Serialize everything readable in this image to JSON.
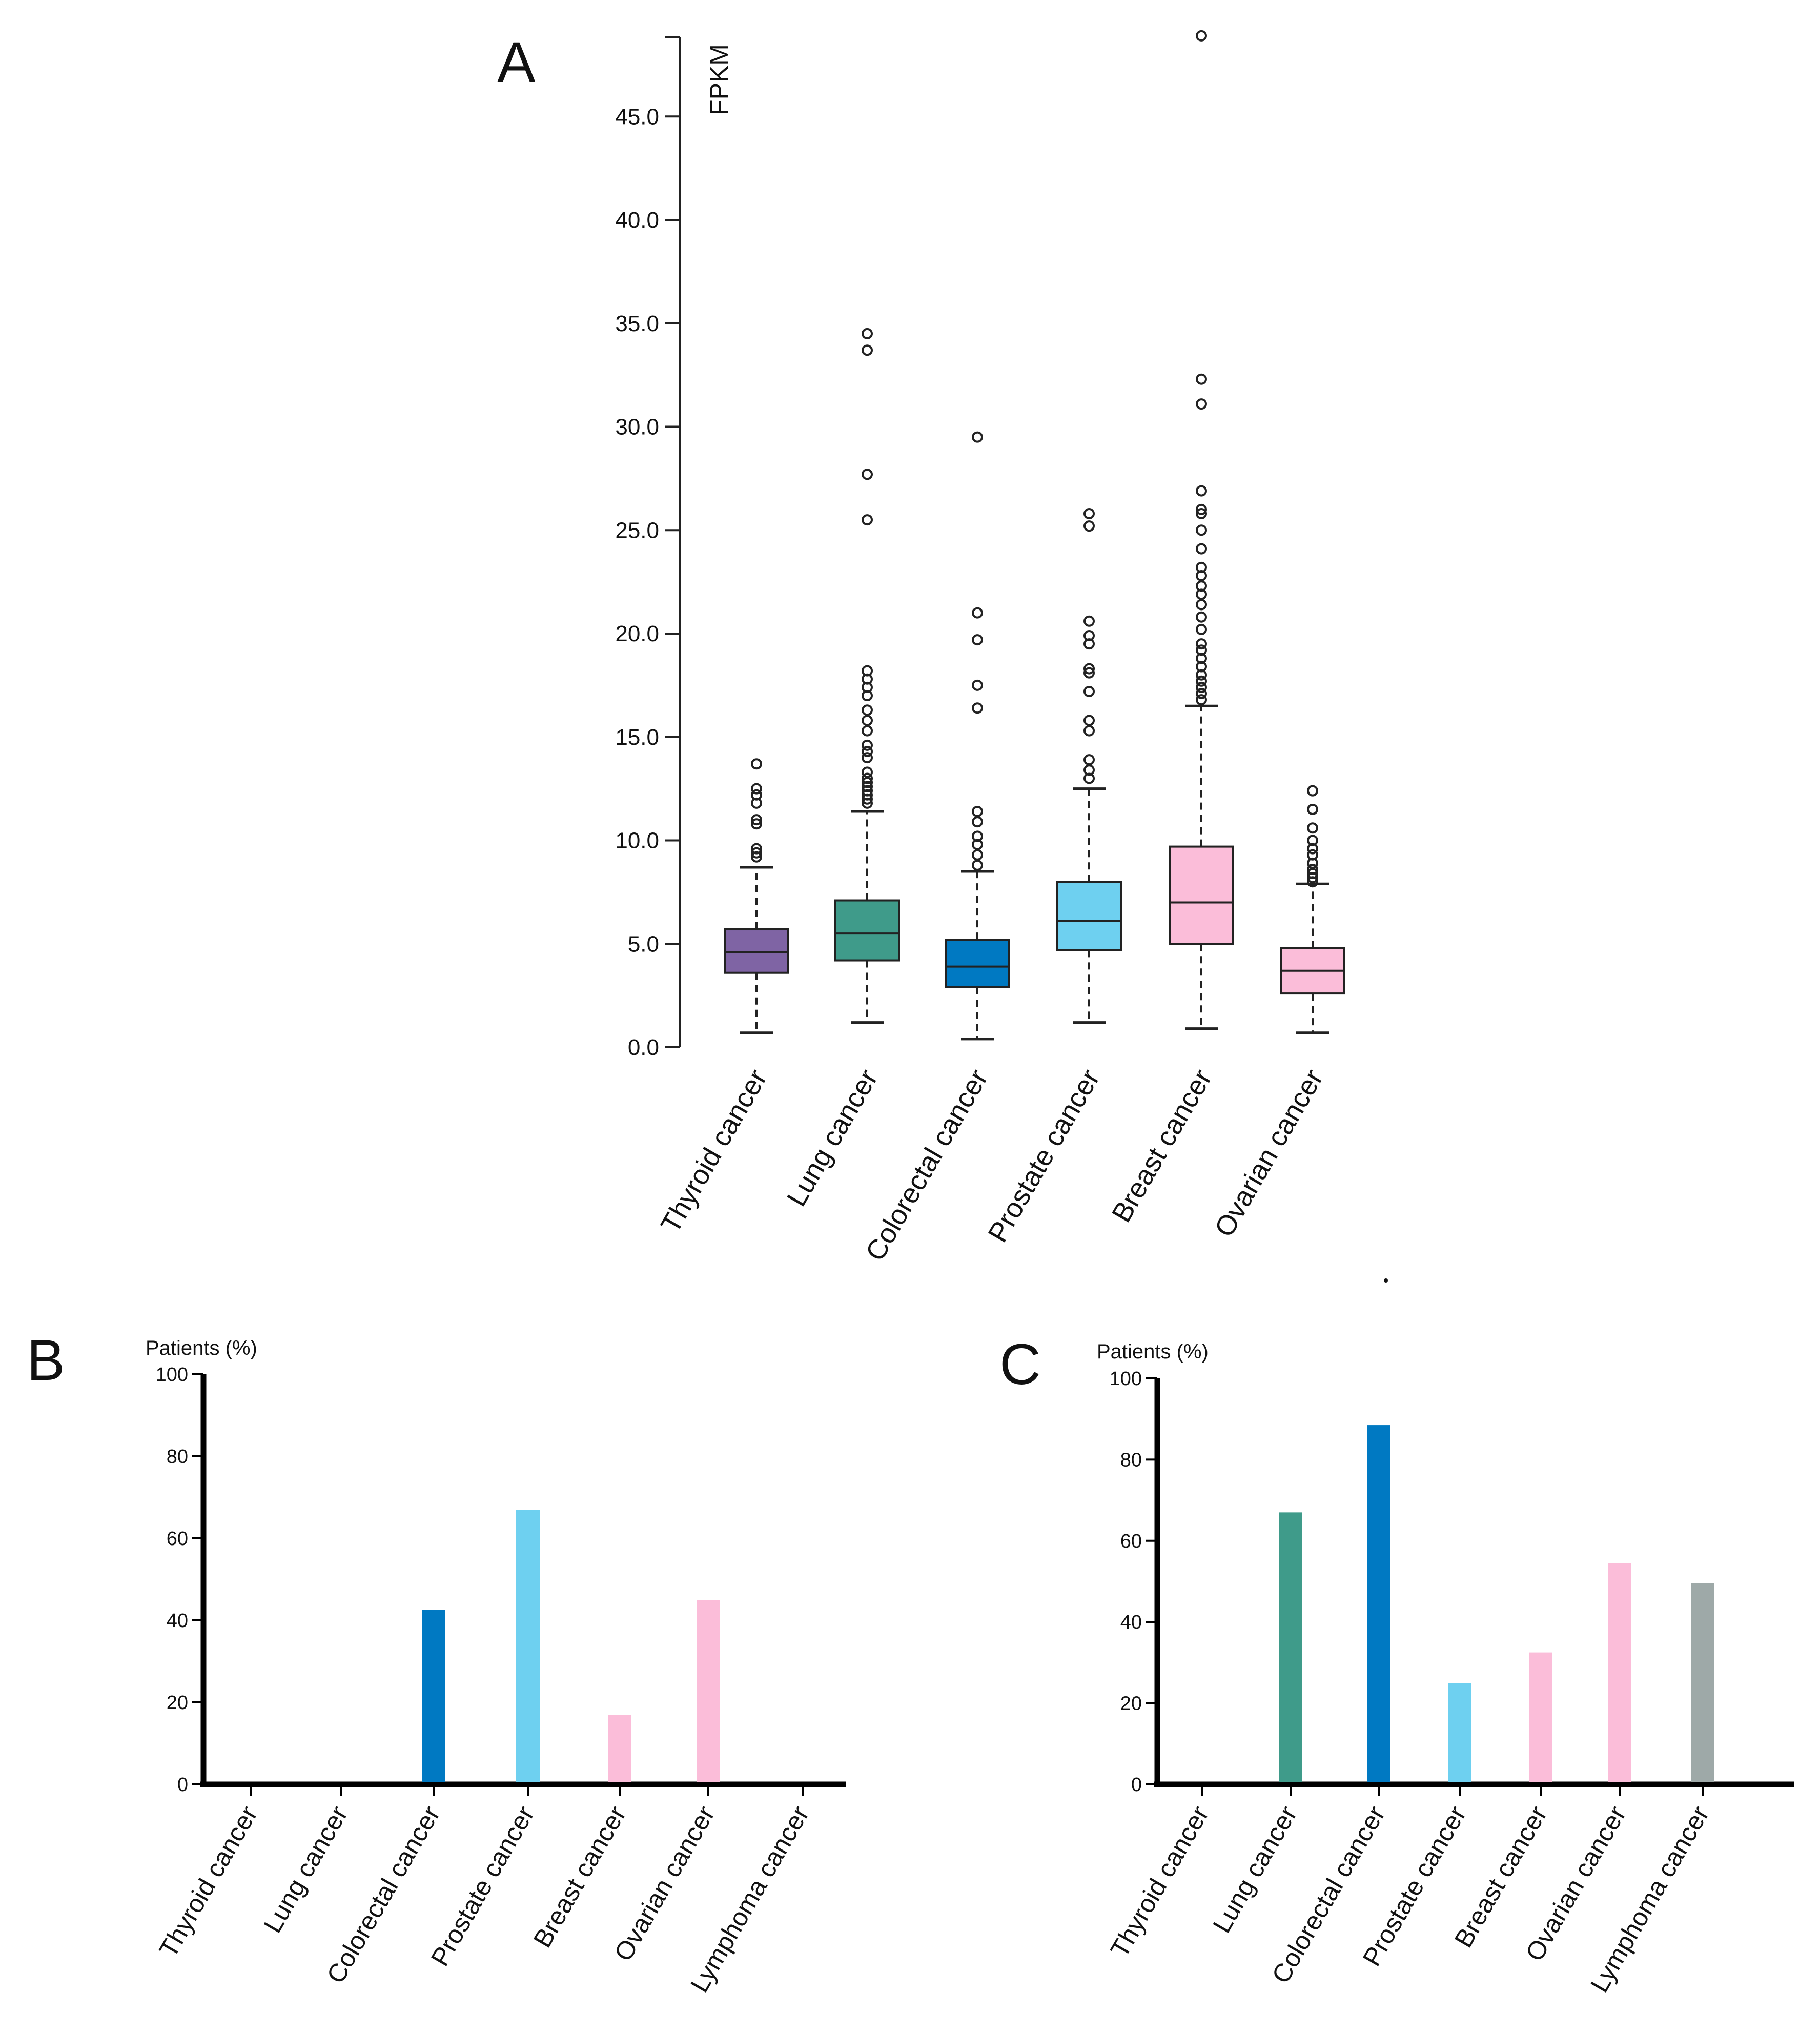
{
  "chart_data": [
    {
      "panel": "A",
      "type": "box",
      "ylabel": "FPKM",
      "ylim": [
        0,
        49
      ],
      "yticks": [
        "0.0",
        "5.0",
        "10.0",
        "15.0",
        "20.0",
        "25.0",
        "30.0",
        "35.0",
        "40.0",
        "45.0"
      ],
      "ytick_values": [
        0,
        5,
        10,
        15,
        20,
        25,
        30,
        35,
        40,
        45
      ],
      "categories": [
        "Thyroid cancer",
        "Lung cancer",
        "Colorectal cancer",
        "Prostate cancer",
        "Breast cancer",
        "Ovarian cancer"
      ],
      "boxes": [
        {
          "name": "Thyroid cancer",
          "color": "#7f64a4",
          "whisker_low": 0.7,
          "q1": 3.6,
          "median": 4.6,
          "q3": 5.7,
          "whisker_high": 8.7,
          "outliers": [
            9.2,
            9.4,
            9.6,
            10.8,
            11.0,
            11.8,
            12.2,
            12.5,
            13.7
          ]
        },
        {
          "name": "Lung cancer",
          "color": "#3f9b8a",
          "whisker_low": 1.2,
          "q1": 4.2,
          "median": 5.5,
          "q3": 7.1,
          "whisker_high": 11.4,
          "outliers": [
            11.8,
            12.0,
            12.2,
            12.4,
            12.6,
            12.8,
            13.0,
            13.3,
            14.0,
            14.3,
            14.6,
            15.3,
            15.8,
            16.3,
            17.0,
            17.4,
            17.8,
            18.2,
            25.5,
            27.7,
            33.7,
            34.5
          ]
        },
        {
          "name": "Colorectal cancer",
          "color": "#0079c2",
          "whisker_low": 0.4,
          "q1": 2.9,
          "median": 3.9,
          "q3": 5.2,
          "whisker_high": 8.5,
          "outliers": [
            8.8,
            9.3,
            9.8,
            10.2,
            10.9,
            11.4,
            16.4,
            17.5,
            19.7,
            21.0,
            29.5
          ]
        },
        {
          "name": "Prostate cancer",
          "color": "#6ed0f0",
          "whisker_low": 1.2,
          "q1": 4.7,
          "median": 6.1,
          "q3": 8.0,
          "whisker_high": 12.5,
          "outliers": [
            13.0,
            13.4,
            13.9,
            15.3,
            15.8,
            17.2,
            18.1,
            18.3,
            19.5,
            19.9,
            20.6,
            25.2,
            25.8
          ]
        },
        {
          "name": "Breast cancer",
          "color": "#fbbdd9",
          "whisker_low": 0.9,
          "q1": 5.0,
          "median": 7.0,
          "q3": 9.7,
          "whisker_high": 16.5,
          "outliers": [
            16.8,
            17.1,
            17.4,
            17.7,
            18.0,
            18.4,
            18.8,
            19.2,
            19.5,
            20.2,
            20.8,
            21.4,
            21.9,
            22.3,
            22.8,
            23.2,
            24.1,
            25.0,
            25.8,
            26.0,
            26.9,
            31.1,
            32.3,
            48.9
          ]
        },
        {
          "name": "Ovarian cancer",
          "color": "#fbbdd9",
          "whisker_low": 0.7,
          "q1": 2.6,
          "median": 3.7,
          "q3": 4.8,
          "whisker_high": 7.9,
          "outliers": [
            8.0,
            8.2,
            8.4,
            8.6,
            8.9,
            9.3,
            9.6,
            10.0,
            10.6,
            11.5,
            12.4
          ]
        }
      ],
      "grid": false
    },
    {
      "panel": "B",
      "type": "bar",
      "ylabel": "Patients (%)",
      "ylim": [
        0,
        100
      ],
      "yticks": [
        "0",
        "20",
        "40",
        "60",
        "80",
        "100"
      ],
      "ytick_values": [
        0,
        20,
        40,
        60,
        80,
        100
      ],
      "categories": [
        "Thyroid cancer",
        "Lung cancer",
        "Colorectal cancer",
        "Prostate cancer",
        "Breast cancer",
        "Ovarian cancer",
        "Lymphoma cancer"
      ],
      "values": [
        0,
        0,
        42.5,
        67,
        17,
        45,
        0
      ],
      "colors": [
        "#7f64a4",
        "#3f9b8a",
        "#0079c2",
        "#6ed0f0",
        "#fbbdd9",
        "#fbbdd9",
        "#9ea9a8"
      ],
      "grid": false
    },
    {
      "panel": "C",
      "type": "bar",
      "ylabel": "Patients (%)",
      "ylim": [
        0,
        100
      ],
      "yticks": [
        "0",
        "20",
        "40",
        "60",
        "80",
        "100"
      ],
      "ytick_values": [
        0,
        20,
        40,
        60,
        80,
        100
      ],
      "categories": [
        "Thyroid cancer",
        "Lung cancer",
        "Colorectal cancer",
        "Prostate cancer",
        "Breast cancer",
        "Ovarian cancer",
        "Lymphoma cancer"
      ],
      "values": [
        0,
        67,
        88.5,
        25,
        32.5,
        54.5,
        49.5
      ],
      "colors": [
        "#7f64a4",
        "#3f9b8a",
        "#0079c2",
        "#6ed0f0",
        "#fbbdd9",
        "#fbbdd9",
        "#9ea9a8"
      ],
      "grid": false
    }
  ]
}
